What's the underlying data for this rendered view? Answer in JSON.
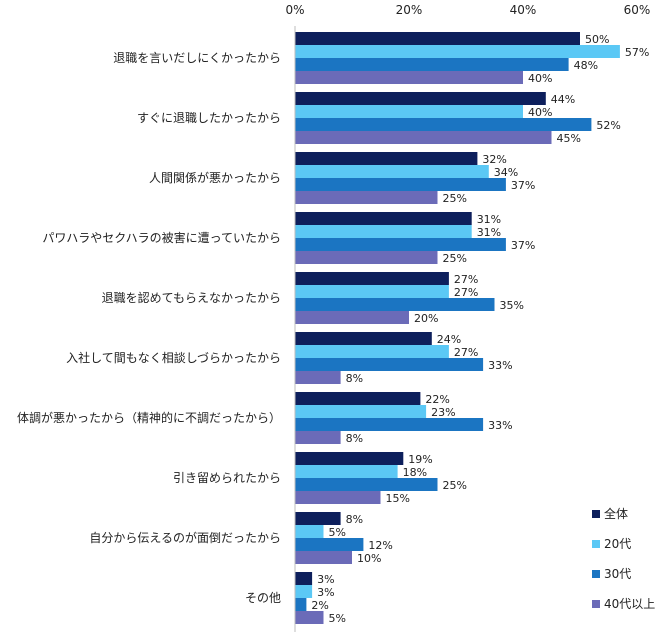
{
  "chart_data": {
    "type": "bar",
    "orientation": "horizontal",
    "title": "",
    "xlabel": "",
    "ylabel": "",
    "xlim": [
      0,
      60
    ],
    "ticks": [
      0,
      20,
      40,
      60
    ],
    "tick_labels": [
      "0%",
      "20%",
      "40%",
      "60%"
    ],
    "grid": false,
    "legend_position": "bottom-right",
    "categories": [
      "退職を言いだしにくかったから",
      "すぐに退職したかったから",
      "人間関係が悪かったから",
      "パワハラやセクハラの被害に遭っていたから",
      "退職を認めてもらえなかったから",
      "入社して間もなく相談しづらかったから",
      "体調が悪かったから（精神的に不調だったから）",
      "引き留められたから",
      "自分から伝えるのが面倒だったから",
      "その他"
    ],
    "series": [
      {
        "name": "全体",
        "color": "#0d1f5c",
        "values": [
          50,
          44,
          32,
          31,
          27,
          24,
          22,
          19,
          8,
          3
        ]
      },
      {
        "name": "20代",
        "color": "#5bc8f5",
        "values": [
          57,
          40,
          34,
          31,
          27,
          27,
          23,
          18,
          5,
          3
        ]
      },
      {
        "name": "30代",
        "color": "#1b75c2",
        "values": [
          48,
          52,
          37,
          37,
          35,
          33,
          33,
          25,
          12,
          2
        ]
      },
      {
        "name": "40代以上",
        "color": "#6b6bb8",
        "values": [
          40,
          45,
          25,
          25,
          20,
          8,
          8,
          15,
          10,
          5
        ]
      }
    ],
    "value_suffix": "%"
  }
}
